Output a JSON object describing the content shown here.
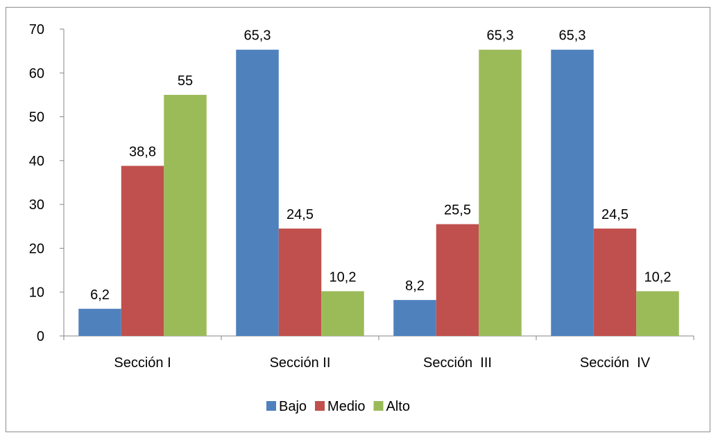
{
  "chart_data": {
    "type": "bar",
    "categories": [
      "Sección I",
      "Sección II",
      "Sección  III",
      "Sección  IV"
    ],
    "series": [
      {
        "name": "Bajo",
        "values": [
          6.2,
          65.3,
          8.2,
          65.3
        ],
        "labels": [
          "6,2",
          "65,3",
          "8,2",
          "65,3"
        ],
        "color": "#4F81BD"
      },
      {
        "name": "Medio",
        "values": [
          38.8,
          24.5,
          25.5,
          24.5
        ],
        "labels": [
          "38,8",
          "24,5",
          "25,5",
          "24,5"
        ],
        "color": "#C0504D"
      },
      {
        "name": "Alto",
        "values": [
          55,
          10.2,
          65.3,
          10.2
        ],
        "labels": [
          "55",
          "10,2",
          "65,3",
          "10,2"
        ],
        "color": "#9BBB59"
      }
    ],
    "yticks": [
      0,
      10,
      20,
      30,
      40,
      50,
      60,
      70
    ],
    "ylim": [
      0,
      70
    ],
    "grid": false,
    "legend_position": "bottom"
  }
}
